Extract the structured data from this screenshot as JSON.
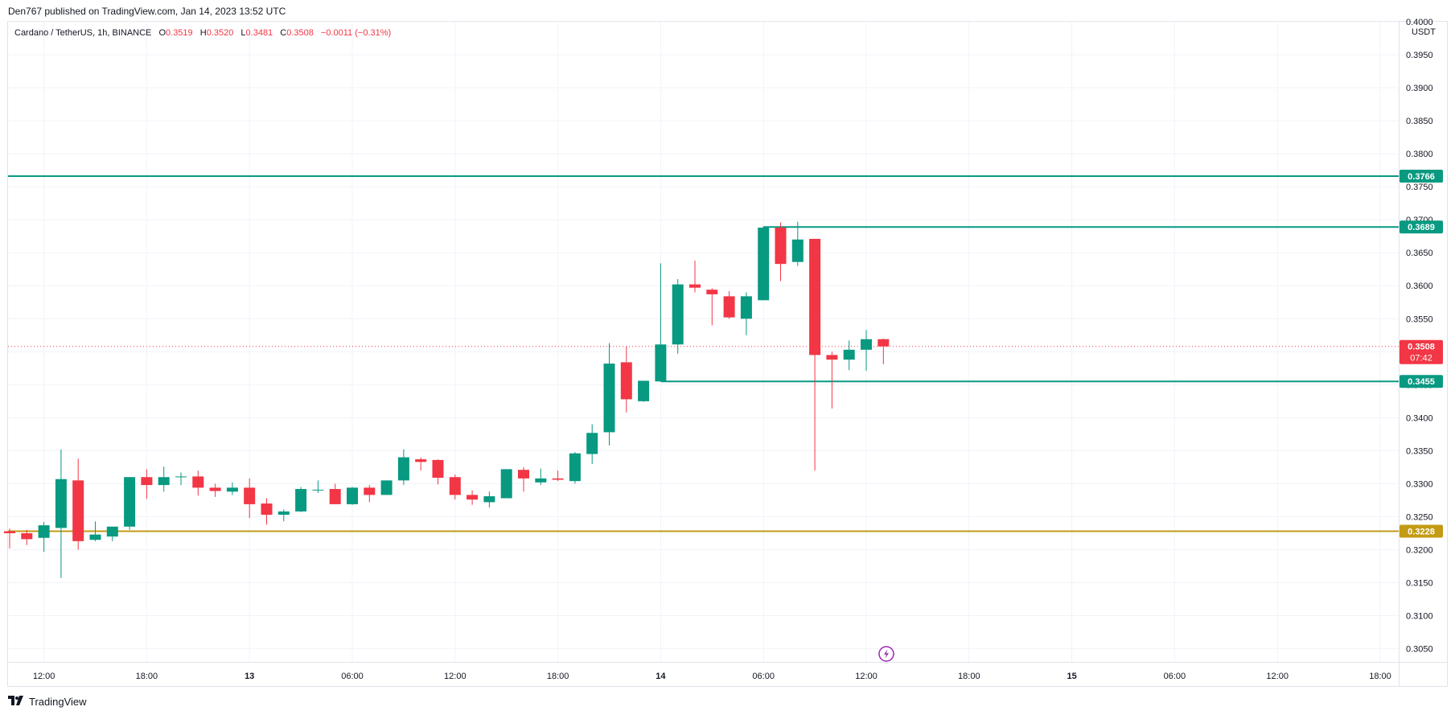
{
  "header": {
    "published": "Den767 published on TradingView.com, Jan 14, 2023 13:52 UTC"
  },
  "symbol_info": {
    "name": "Cardano / TetherUS, 1h, BINANCE",
    "open_label": "O",
    "open": "0.3519",
    "high_label": "H",
    "high": "0.3520",
    "low_label": "L",
    "low": "0.3481",
    "close_label": "C",
    "close": "0.3508",
    "change": "−0.0011 (−0.31%)"
  },
  "currency": "USDT",
  "footer": {
    "brand": "TradingView"
  },
  "colors": {
    "up": "#089981",
    "down": "#f23645",
    "hline": "#089981",
    "support": "#c39b14",
    "grid": "#f0f3fa",
    "text": "#131722"
  },
  "chart_data": {
    "type": "candlestick",
    "interval": "1h",
    "ylim": [
      0.303,
      0.4
    ],
    "y_ticks": [
      "0.3050",
      "0.3100",
      "0.3150",
      "0.3200",
      "0.3250",
      "0.3300",
      "0.3350",
      "0.3400",
      "0.3450",
      "0.3500",
      "0.3550",
      "0.3600",
      "0.3650",
      "0.3700",
      "0.3750",
      "0.3800",
      "0.3850",
      "0.3900",
      "0.3950",
      "0.4000"
    ],
    "x_ticks": [
      {
        "label": "12:00",
        "bar": 2
      },
      {
        "label": "18:00",
        "bar": 8
      },
      {
        "label": "13",
        "bar": 14
      },
      {
        "label": "06:00",
        "bar": 20
      },
      {
        "label": "12:00",
        "bar": 26
      },
      {
        "label": "18:00",
        "bar": 32
      },
      {
        "label": "14",
        "bar": 38
      },
      {
        "label": "06:00",
        "bar": 44
      },
      {
        "label": "12:00",
        "bar": 50
      },
      {
        "label": "18:00",
        "bar": 56
      },
      {
        "label": "15",
        "bar": 62
      },
      {
        "label": "06:00",
        "bar": 68
      },
      {
        "label": "12:00",
        "bar": 74
      },
      {
        "label": "18:00",
        "bar": 80
      }
    ],
    "ohlc": [
      [
        0.3228,
        0.3232,
        0.3202,
        0.3225
      ],
      [
        0.3225,
        0.323,
        0.3207,
        0.3216
      ],
      [
        0.3218,
        0.3242,
        0.3197,
        0.3237
      ],
      [
        0.3233,
        0.3352,
        0.3157,
        0.3307
      ],
      [
        0.3305,
        0.3338,
        0.32,
        0.3213
      ],
      [
        0.3215,
        0.3243,
        0.3213,
        0.3223
      ],
      [
        0.322,
        0.3232,
        0.3213,
        0.3235
      ],
      [
        0.3235,
        0.331,
        0.323,
        0.331
      ],
      [
        0.331,
        0.3322,
        0.3277,
        0.3298
      ],
      [
        0.3298,
        0.3326,
        0.3288,
        0.331
      ],
      [
        0.331,
        0.3317,
        0.3298,
        0.3311
      ],
      [
        0.3311,
        0.332,
        0.3282,
        0.3294
      ],
      [
        0.3294,
        0.33,
        0.328,
        0.3289
      ],
      [
        0.3288,
        0.3302,
        0.3283,
        0.3294
      ],
      [
        0.3294,
        0.3308,
        0.3248,
        0.3269
      ],
      [
        0.327,
        0.3278,
        0.3238,
        0.3253
      ],
      [
        0.3253,
        0.3261,
        0.3243,
        0.3258
      ],
      [
        0.3258,
        0.3295,
        0.3257,
        0.3292
      ],
      [
        0.3291,
        0.3305,
        0.3286,
        0.3291
      ],
      [
        0.3292,
        0.33,
        0.3269,
        0.3269
      ],
      [
        0.3269,
        0.3295,
        0.3268,
        0.3294
      ],
      [
        0.3294,
        0.3298,
        0.3272,
        0.3283
      ],
      [
        0.3283,
        0.3305,
        0.3283,
        0.3305
      ],
      [
        0.3305,
        0.3352,
        0.3298,
        0.334
      ],
      [
        0.3337,
        0.334,
        0.332,
        0.3333
      ],
      [
        0.3336,
        0.3337,
        0.3299,
        0.3309
      ],
      [
        0.331,
        0.3314,
        0.3276,
        0.3283
      ],
      [
        0.3283,
        0.329,
        0.3268,
        0.3276
      ],
      [
        0.3272,
        0.3288,
        0.3264,
        0.3281
      ],
      [
        0.3278,
        0.3322,
        0.3278,
        0.3322
      ],
      [
        0.3321,
        0.3325,
        0.3288,
        0.3308
      ],
      [
        0.3302,
        0.3323,
        0.3298,
        0.3308
      ],
      [
        0.3308,
        0.332,
        0.3304,
        0.3306
      ],
      [
        0.3304,
        0.3348,
        0.33,
        0.3346
      ],
      [
        0.3345,
        0.339,
        0.333,
        0.3377
      ],
      [
        0.3378,
        0.3513,
        0.3358,
        0.3482
      ],
      [
        0.3484,
        0.3508,
        0.3408,
        0.3428
      ],
      [
        0.3425,
        0.3456,
        0.3424,
        0.3456
      ],
      [
        0.3455,
        0.3634,
        0.3455,
        0.3511
      ],
      [
        0.3511,
        0.361,
        0.3497,
        0.3602
      ],
      [
        0.3602,
        0.3638,
        0.359,
        0.3597
      ],
      [
        0.3594,
        0.3596,
        0.354,
        0.3587
      ],
      [
        0.3584,
        0.3592,
        0.355,
        0.3552
      ],
      [
        0.355,
        0.359,
        0.3525,
        0.3584
      ],
      [
        0.3578,
        0.369,
        0.3578,
        0.3688
      ],
      [
        0.3688,
        0.3696,
        0.3607,
        0.3633
      ],
      [
        0.3636,
        0.3697,
        0.363,
        0.367
      ],
      [
        0.3671,
        0.3671,
        0.332,
        0.3495
      ],
      [
        0.3495,
        0.35,
        0.3414,
        0.3488
      ],
      [
        0.3488,
        0.3517,
        0.3472,
        0.3503
      ],
      [
        0.3503,
        0.3533,
        0.3471,
        0.3519
      ],
      [
        0.3519,
        0.352,
        0.3481,
        0.3508
      ]
    ],
    "current_price": {
      "label": "0.3508",
      "countdown": "07:42"
    },
    "horizontal_lines": [
      {
        "price": 0.3766,
        "label": "0.3766",
        "start_bar": null,
        "color": "#089981"
      },
      {
        "price": 0.3689,
        "label": "0.3689",
        "start_bar": 44,
        "color": "#089981"
      },
      {
        "price": 0.3455,
        "label": "0.3455",
        "start_bar": 38,
        "color": "#089981"
      },
      {
        "price": 0.3228,
        "label": "0.3228",
        "start_bar": null,
        "color": "#c39b14"
      }
    ]
  }
}
